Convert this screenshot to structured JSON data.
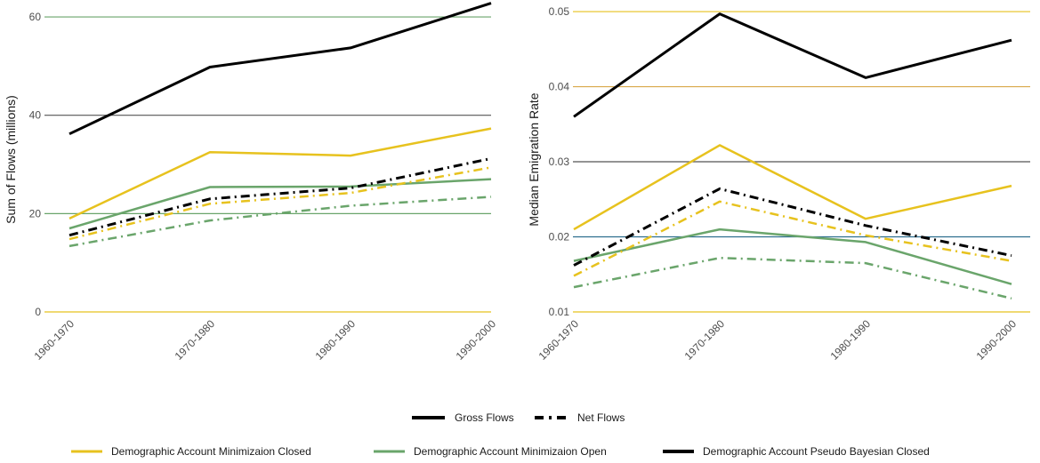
{
  "chart_data": [
    {
      "type": "line",
      "ylabel": "Sum of Flows (millions)",
      "xlabel": "",
      "categories": [
        "1960-1970",
        "1970-1980",
        "1980-1990",
        "1990-2000"
      ],
      "ylim": [
        0,
        62
      ],
      "yticks": [
        0,
        20,
        40,
        60
      ],
      "grid": true,
      "series": [
        {
          "name": "Demographic Account Pseudo Bayesian Closed",
          "type": "Gross Flows",
          "color": "#000000",
          "values": [
            36.2,
            49.8,
            53.7,
            62.8
          ]
        },
        {
          "name": "Demographic Account Minimizaion Closed",
          "type": "Gross Flows",
          "color": "#e7c21e",
          "values": [
            19.0,
            32.5,
            31.8,
            37.3
          ]
        },
        {
          "name": "Demographic Account Minimizaion Open",
          "type": "Gross Flows",
          "color": "#6aa56b",
          "values": [
            17.0,
            25.4,
            25.5,
            27.0
          ]
        },
        {
          "name": "Demographic Account Pseudo Bayesian Closed",
          "type": "Net Flows",
          "color": "#000000",
          "values": [
            15.6,
            23.0,
            25.2,
            31.2
          ]
        },
        {
          "name": "Demographic Account Minimizaion Closed",
          "type": "Net Flows",
          "color": "#e7c21e",
          "values": [
            14.8,
            22.0,
            24.2,
            29.4
          ]
        },
        {
          "name": "Demographic Account Minimizaion Open",
          "type": "Net Flows",
          "color": "#6aa56b",
          "values": [
            13.4,
            18.6,
            21.6,
            23.4
          ]
        }
      ]
    },
    {
      "type": "line",
      "ylabel": "Median Emigration Rate",
      "xlabel": "",
      "categories": [
        "1960-1970",
        "1970-1980",
        "1980-1990",
        "1990-2000"
      ],
      "ylim": [
        0.01,
        0.0506
      ],
      "yticks": [
        0.01,
        0.02,
        0.03,
        0.04,
        0.05
      ],
      "grid": true,
      "series": [
        {
          "name": "Demographic Account Pseudo Bayesian Closed",
          "type": "Gross Flows",
          "color": "#000000",
          "values": [
            0.036,
            0.0497,
            0.0412,
            0.0462
          ]
        },
        {
          "name": "Demographic Account Minimizaion Closed",
          "type": "Gross Flows",
          "color": "#e7c21e",
          "values": [
            0.021,
            0.0322,
            0.0224,
            0.0268
          ]
        },
        {
          "name": "Demographic Account Minimizaion Open",
          "type": "Gross Flows",
          "color": "#6aa56b",
          "values": [
            0.0168,
            0.021,
            0.0193,
            0.0137
          ]
        },
        {
          "name": "Demographic Account Pseudo Bayesian Closed",
          "type": "Net Flows",
          "color": "#000000",
          "values": [
            0.0162,
            0.0264,
            0.0215,
            0.0175
          ]
        },
        {
          "name": "Demographic Account Minimizaion Closed",
          "type": "Net Flows",
          "color": "#e7c21e",
          "values": [
            0.0148,
            0.0247,
            0.0202,
            0.0168
          ]
        },
        {
          "name": "Demographic Account Minimizaion Open",
          "type": "Net Flows",
          "color": "#6aa56b",
          "values": [
            0.0133,
            0.0172,
            0.0165,
            0.0118
          ]
        }
      ]
    }
  ],
  "legend": {
    "linetype": [
      {
        "label": "Gross Flows",
        "dash": "solid"
      },
      {
        "label": "Net Flows",
        "dash": "dashed"
      }
    ],
    "color": [
      {
        "label": "Demographic Account Minimizaion Closed",
        "color": "#e7c21e"
      },
      {
        "label": "Demographic Account Minimizaion Open",
        "color": "#6aa56b"
      },
      {
        "label": "Demographic Account Pseudo Bayesian Closed",
        "color": "#000000"
      }
    ]
  }
}
